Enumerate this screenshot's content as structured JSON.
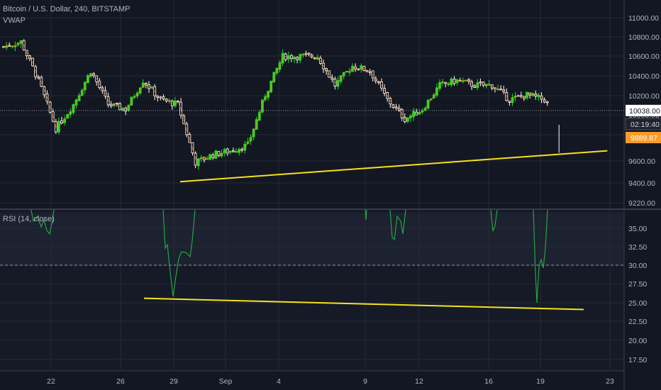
{
  "header": {
    "symbol_line": "Bitcoin / U.S. Dollar, 240, BITSTAMP",
    "overlay": "VWAP",
    "rsi_label": "RSI (14, close)"
  },
  "price_tags": {
    "crosshair": "10038.00",
    "countdown": "02:19:40",
    "last_price": "9889.87"
  },
  "colors": {
    "background": "#131722",
    "grid": "#252a36",
    "up": "#26d926",
    "down": "#ffffff",
    "vwap": "#f07c1b",
    "trendline": "#f5e21b",
    "rsi": "#27a344",
    "last_price_tag": "#f79c2a",
    "crosshair_tag": "#ffffff"
  },
  "chart_data": [
    {
      "type": "candlestick",
      "title": "Bitcoin / U.S. Dollar, 240, BITSTAMP",
      "x_ticks": [
        "22",
        "26",
        "29",
        "Sep",
        "4",
        "9",
        "12",
        "16",
        "19",
        "23"
      ],
      "y_ticks": [
        11000,
        10800,
        10600,
        10400,
        10200,
        10000,
        9800,
        9600,
        9400,
        9220
      ],
      "ylim": [
        9200,
        11100
      ],
      "crosshair_value": 10038.0,
      "last_price": 9889.87,
      "anchors": [
        {
          "date": "Aug 18",
          "price": 10700
        },
        {
          "date": "Aug 19",
          "price": 10750
        },
        {
          "date": "Aug 20",
          "price": 10350
        },
        {
          "date": "Aug 21",
          "price": 9850
        },
        {
          "date": "Aug 22",
          "price": 10100
        },
        {
          "date": "Aug 23",
          "price": 10450
        },
        {
          "date": "Aug 24",
          "price": 10100
        },
        {
          "date": "Aug 25",
          "price": 10050
        },
        {
          "date": "Aug 26",
          "price": 10350
        },
        {
          "date": "Aug 27",
          "price": 10150
        },
        {
          "date": "Aug 28",
          "price": 10100
        },
        {
          "date": "Aug 29",
          "price": 9500
        },
        {
          "date": "Aug 30",
          "price": 9580
        },
        {
          "date": "Aug 31",
          "price": 9620
        },
        {
          "date": "Sep 1",
          "price": 9680
        },
        {
          "date": "Sep 2",
          "price": 10200
        },
        {
          "date": "Sep 3",
          "price": 10600
        },
        {
          "date": "Sep 4",
          "price": 10600
        },
        {
          "date": "Sep 5",
          "price": 10600
        },
        {
          "date": "Sep 6",
          "price": 10300
        },
        {
          "date": "Sep 7",
          "price": 10500
        },
        {
          "date": "Sep 8",
          "price": 10450
        },
        {
          "date": "Sep 9",
          "price": 10150
        },
        {
          "date": "Sep 10",
          "price": 9950
        },
        {
          "date": "Sep 11",
          "price": 10050
        },
        {
          "date": "Sep 12",
          "price": 10300
        },
        {
          "date": "Sep 13",
          "price": 10350
        },
        {
          "date": "Sep 14",
          "price": 10300
        },
        {
          "date": "Sep 15",
          "price": 10300
        },
        {
          "date": "Sep 16",
          "price": 10150
        },
        {
          "date": "Sep 17",
          "price": 10200
        },
        {
          "date": "Sep 18",
          "price": 10150
        },
        {
          "date": "Sep 19",
          "price": 9890
        }
      ],
      "trendline": [
        {
          "date": "Aug 28",
          "price": 9300
        },
        {
          "date": "Sep 21",
          "price": 9620
        }
      ]
    },
    {
      "type": "line",
      "title": "RSI (14, close)",
      "y_ticks": [
        35.0,
        32.5,
        30.0,
        27.5,
        25.0,
        22.5,
        20.0,
        17.5
      ],
      "ylim": [
        16.5,
        37.0
      ],
      "oversold_line": 30.0,
      "series": [
        {
          "values_visible": [
            {
              "date": "Aug 18",
              "rsi": 34.0
            },
            {
              "date": "Aug 29",
              "rsi": 25.8
            },
            {
              "date": "Aug 30",
              "rsi": 31.5
            },
            {
              "date": "Sep 11",
              "rsi": 33.5
            },
            {
              "date": "Sep 17",
              "rsi": 35.5
            },
            {
              "date": "Sep 19",
              "rsi": 24.8
            }
          ]
        }
      ],
      "trendline": [
        {
          "date": "Aug 27",
          "rsi": 25.6
        },
        {
          "date": "Sep 21",
          "rsi": 24.1
        }
      ]
    }
  ]
}
